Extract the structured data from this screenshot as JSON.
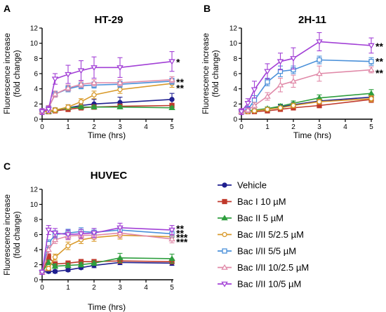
{
  "colors": {
    "Vehicle": "#1f1f8f",
    "Bac I 10 µM": "#c0392b",
    "Bac II 5 µM": "#2e9e3e",
    "Bac I/II 5/2.5 µM": "#d99a2b",
    "Bac I/II 5/5 µM": "#4a90d9",
    "Bac I/II 10/2.5 µM": "#e089a8",
    "Bac I/II 10/5 µM": "#a240d6"
  },
  "legend_entries": [
    {
      "name": "Vehicle",
      "marker": "circle-filled"
    },
    {
      "name": "Bac I 10 µM",
      "marker": "square-filled"
    },
    {
      "name": "Bac II 5 µM",
      "marker": "triangle-filled"
    },
    {
      "name": "Bac I/II 5/2.5 µM",
      "marker": "circle-open"
    },
    {
      "name": "Bac I/II 5/5 µM",
      "marker": "square-open"
    },
    {
      "name": "Bac I/II 10/2.5 µM",
      "marker": "triangle-open"
    },
    {
      "name": "Bac I/II 10/5 µM",
      "marker": "triangle-down-open"
    }
  ],
  "chart_data": [
    {
      "type": "line",
      "panel_letter": "A",
      "title": "HT-29",
      "xlabel": "Time (hrs)",
      "ylabel": [
        "Fluorescence increase",
        "(fold change)"
      ],
      "xlim": [
        0,
        5
      ],
      "ylim": [
        0,
        12
      ],
      "xticks": [
        0,
        1,
        2,
        3,
        4,
        5
      ],
      "yticks": [
        0,
        2,
        4,
        6,
        8,
        10,
        12
      ],
      "x": [
        0,
        0.25,
        0.5,
        1,
        1.5,
        2,
        3,
        5
      ],
      "series": [
        {
          "name": "Vehicle",
          "values": [
            1.0,
            1.0,
            1.2,
            1.5,
            1.8,
            2.0,
            2.2,
            2.6
          ],
          "errors": [
            0.3,
            0.3,
            0.3,
            0.4,
            0.5,
            0.6,
            0.7,
            0.8
          ]
        },
        {
          "name": "Bac I 10 µM",
          "values": [
            1.0,
            1.0,
            1.1,
            1.3,
            1.5,
            1.6,
            1.7,
            1.8
          ],
          "errors": [
            0.2,
            0.2,
            0.2,
            0.3,
            0.3,
            0.3,
            0.3,
            0.3
          ]
        },
        {
          "name": "Bac II 5 µM",
          "values": [
            1.0,
            1.0,
            1.2,
            1.5,
            1.6,
            1.6,
            1.6,
            1.5
          ],
          "errors": [
            0.2,
            0.2,
            0.2,
            0.2,
            0.2,
            0.2,
            0.2,
            0.2
          ]
        },
        {
          "name": "Bac I/II 5/2.5 µM",
          "values": [
            1.0,
            1.0,
            1.2,
            1.6,
            2.3,
            3.2,
            3.9,
            4.7
          ],
          "errors": [
            0.2,
            0.2,
            0.3,
            0.3,
            0.4,
            0.5,
            0.5,
            0.5
          ]
        },
        {
          "name": "Bac I/II 5/5 µM",
          "values": [
            1.0,
            1.5,
            3.3,
            4.0,
            4.4,
            4.5,
            4.6,
            5.0
          ],
          "errors": [
            0.3,
            0.3,
            0.4,
            0.4,
            0.4,
            0.4,
            0.4,
            0.4
          ]
        },
        {
          "name": "Bac I/II 10/2.5 µM",
          "values": [
            1.0,
            1.5,
            3.3,
            4.1,
            4.6,
            4.8,
            4.8,
            5.2
          ],
          "errors": [
            0.3,
            0.3,
            0.4,
            0.4,
            0.4,
            0.4,
            0.4,
            0.4
          ]
        },
        {
          "name": "Bac I/II 10/5 µM",
          "values": [
            1.0,
            1.3,
            5.3,
            5.9,
            6.4,
            6.8,
            6.8,
            7.6
          ],
          "errors": [
            0.4,
            0.4,
            0.7,
            1.2,
            1.3,
            1.4,
            1.3,
            1.3
          ]
        }
      ],
      "annotations": [
        {
          "text": "*",
          "y": 7.6
        },
        {
          "text": "**",
          "y": 5.0
        },
        {
          "text": "**",
          "y": 4.2
        }
      ]
    },
    {
      "type": "line",
      "panel_letter": "B",
      "title": "2H-11",
      "xlabel": "Time (hrs)",
      "ylabel": [
        "Fluorescence increase",
        "(fold change)"
      ],
      "xlim": [
        0,
        5
      ],
      "ylim": [
        0,
        12
      ],
      "xticks": [
        0,
        1,
        2,
        3,
        4,
        5
      ],
      "yticks": [
        0,
        2,
        4,
        6,
        8,
        10,
        12
      ],
      "x": [
        0,
        0.25,
        0.5,
        1,
        1.5,
        2,
        3,
        5
      ],
      "series": [
        {
          "name": "Vehicle",
          "values": [
            1.0,
            1.0,
            1.1,
            1.3,
            1.6,
            1.9,
            2.4,
            2.9
          ],
          "errors": [
            0.2,
            0.2,
            0.2,
            0.3,
            0.3,
            0.3,
            0.4,
            0.4
          ]
        },
        {
          "name": "Bac I 10 µM",
          "values": [
            1.0,
            1.0,
            1.0,
            1.1,
            1.3,
            1.5,
            1.8,
            2.6
          ],
          "errors": [
            0.2,
            0.2,
            0.2,
            0.2,
            0.2,
            0.3,
            0.3,
            0.4
          ]
        },
        {
          "name": "Bac II 5 µM",
          "values": [
            1.0,
            1.1,
            1.2,
            1.4,
            1.7,
            2.1,
            2.8,
            3.4
          ],
          "errors": [
            0.2,
            0.2,
            0.2,
            0.2,
            0.3,
            0.3,
            0.4,
            0.5
          ]
        },
        {
          "name": "Bac I/II 5/2.5 µM",
          "values": [
            1.0,
            1.0,
            1.1,
            1.3,
            1.5,
            1.8,
            2.3,
            2.7
          ],
          "errors": [
            0.2,
            0.2,
            0.2,
            0.2,
            0.2,
            0.3,
            0.3,
            0.4
          ]
        },
        {
          "name": "Bac I/II 5/5 µM",
          "values": [
            1.0,
            1.3,
            2.5,
            4.9,
            6.3,
            6.5,
            7.8,
            7.6
          ],
          "errors": [
            0.3,
            0.4,
            0.6,
            0.5,
            0.7,
            0.5,
            0.5,
            0.5
          ]
        },
        {
          "name": "Bac I/II 10/2.5 µM",
          "values": [
            1.0,
            1.2,
            1.8,
            3.0,
            4.5,
            5.0,
            6.0,
            6.5
          ],
          "errors": [
            0.3,
            0.3,
            0.4,
            0.5,
            0.9,
            0.8,
            1.0,
            0.4
          ]
        },
        {
          "name": "Bac I/II 10/5 µM",
          "values": [
            1.0,
            2.1,
            3.9,
            6.3,
            7.6,
            8.0,
            10.2,
            9.7
          ],
          "errors": [
            0.4,
            0.6,
            1.1,
            1.0,
            1.1,
            1.4,
            1.2,
            1.0
          ]
        }
      ],
      "annotations": [
        {
          "text": "**",
          "y": 9.7
        },
        {
          "text": "**",
          "y": 7.7
        },
        {
          "text": "**",
          "y": 6.2
        }
      ]
    },
    {
      "type": "line",
      "panel_letter": "C",
      "title": "HUVEC",
      "xlabel": "Time (hrs)",
      "ylabel": [
        "Fluorescence increase",
        "(fold change)"
      ],
      "xlim": [
        0,
        5
      ],
      "ylim": [
        0,
        12
      ],
      "xticks": [
        0,
        1,
        2,
        3,
        4,
        5
      ],
      "yticks": [
        0,
        2,
        4,
        6,
        8,
        10,
        12
      ],
      "x": [
        0,
        0.25,
        0.5,
        1,
        1.5,
        2,
        3,
        5
      ],
      "series": [
        {
          "name": "Vehicle",
          "values": [
            1.0,
            1.1,
            1.1,
            1.3,
            1.6,
            1.9,
            2.3,
            2.2
          ],
          "errors": [
            0.2,
            0.2,
            0.2,
            0.2,
            0.2,
            0.3,
            0.3,
            0.3
          ]
        },
        {
          "name": "Bac I 10 µM",
          "values": [
            1.0,
            3.0,
            2.1,
            2.2,
            2.4,
            2.4,
            2.5,
            2.4
          ],
          "errors": [
            0.2,
            0.4,
            0.3,
            0.3,
            0.3,
            0.3,
            0.3,
            0.3
          ]
        },
        {
          "name": "Bac II 5 µM",
          "values": [
            1.0,
            2.3,
            1.8,
            1.9,
            2.0,
            2.2,
            2.9,
            2.8
          ],
          "errors": [
            0.2,
            0.3,
            0.3,
            0.3,
            0.3,
            0.3,
            0.6,
            0.6
          ]
        },
        {
          "name": "Bac I/II 5/2.5 µM",
          "values": [
            1.0,
            1.5,
            3.0,
            4.5,
            5.3,
            5.6,
            5.9,
            5.7
          ],
          "errors": [
            0.2,
            0.3,
            0.4,
            0.5,
            0.5,
            0.5,
            0.5,
            0.5
          ]
        },
        {
          "name": "Bac I/II 5/5 µM",
          "values": [
            1.0,
            4.8,
            6.0,
            6.2,
            6.4,
            6.3,
            6.6,
            6.1
          ],
          "errors": [
            0.3,
            0.5,
            0.5,
            0.5,
            0.5,
            0.5,
            0.5,
            0.5
          ]
        },
        {
          "name": "Bac I/II 10/2.5 µM",
          "values": [
            1.0,
            4.0,
            5.3,
            5.8,
            5.9,
            5.9,
            6.2,
            5.4
          ],
          "errors": [
            0.3,
            0.5,
            0.5,
            0.5,
            0.5,
            0.5,
            0.6,
            0.5
          ]
        },
        {
          "name": "Bac I/II 10/5 µM",
          "values": [
            1.0,
            6.6,
            6.2,
            6.0,
            6.1,
            6.2,
            6.9,
            6.6
          ],
          "errors": [
            0.3,
            0.6,
            0.6,
            0.6,
            0.6,
            0.6,
            0.6,
            0.6
          ]
        }
      ],
      "annotations": [
        {
          "text": "**",
          "y": 6.9
        },
        {
          "text": "**",
          "y": 6.3
        },
        {
          "text": "***",
          "y": 5.7
        },
        {
          "text": "***",
          "y": 5.1
        }
      ]
    }
  ]
}
